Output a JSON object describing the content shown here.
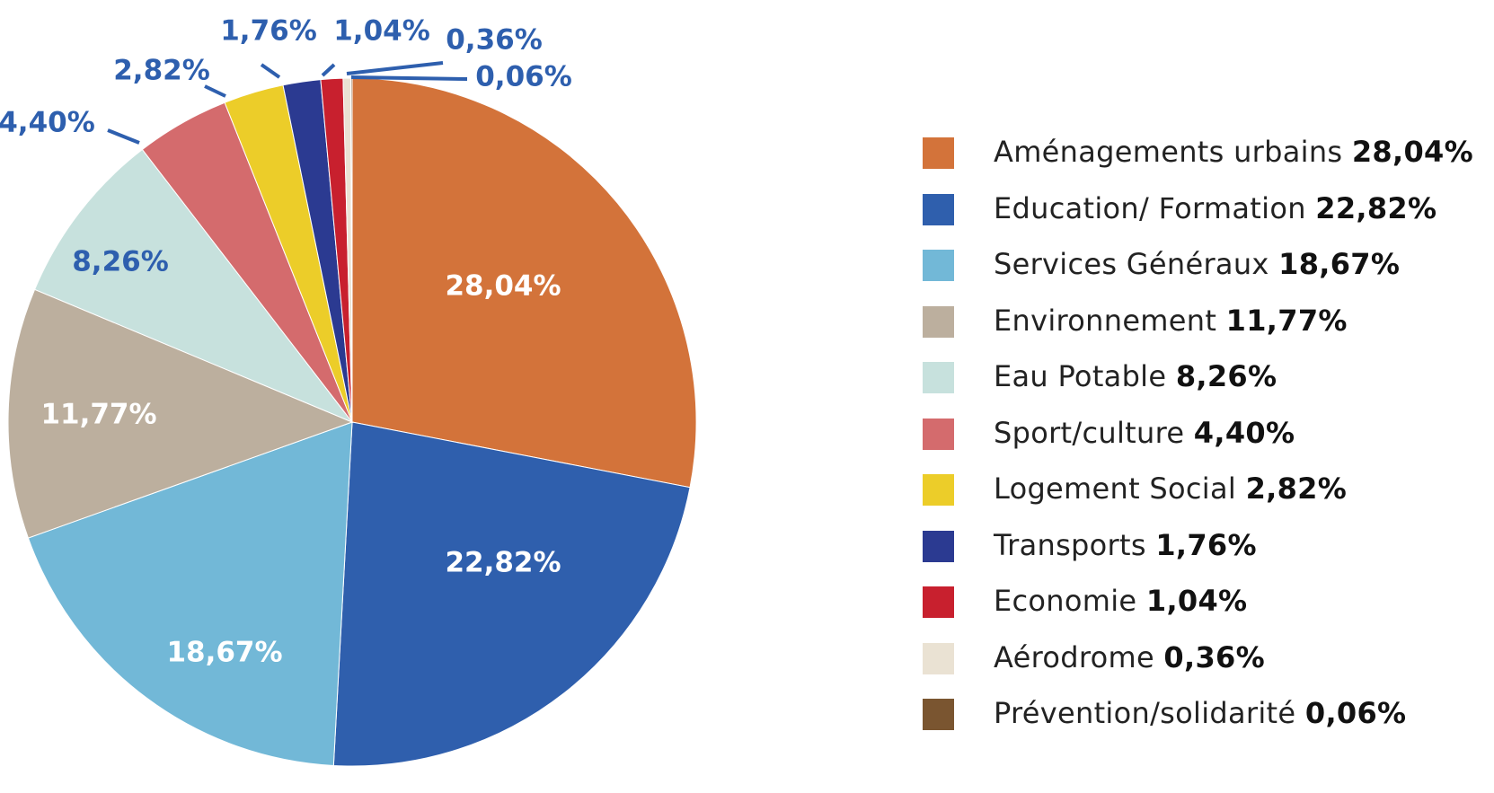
{
  "chart_data": {
    "type": "pie",
    "title": "",
    "slices": [
      {
        "label": "Aménagements urbains",
        "value": 28.04,
        "display": "28,04%",
        "color": "#D3733A",
        "label_color": "#ffffff"
      },
      {
        "label": "Education/ Formation",
        "value": 22.82,
        "display": "22,82%",
        "color": "#2F5FAD",
        "label_color": "#ffffff"
      },
      {
        "label": "Services Généraux",
        "value": 18.67,
        "display": "18,67%",
        "color": "#72B8D7",
        "label_color": "#ffffff"
      },
      {
        "label": "Environnement",
        "value": 11.77,
        "display": "11,77%",
        "color": "#BCAF9E",
        "label_color": "#ffffff"
      },
      {
        "label": "Eau Potable",
        "value": 8.26,
        "display": "8,26%",
        "color": "#C7E1DD",
        "label_color": "#2E5FAE"
      },
      {
        "label": "Sport/culture",
        "value": 4.4,
        "display": "4,40%",
        "color": "#D46B6D",
        "label_color": "#2E5FAE"
      },
      {
        "label": "Logement Social",
        "value": 2.82,
        "display": "2,82%",
        "color": "#ECCD29",
        "label_color": "#2E5FAE"
      },
      {
        "label": "Transports",
        "value": 1.76,
        "display": "1,76%",
        "color": "#2B3A91",
        "label_color": "#2E5FAE"
      },
      {
        "label": "Economie",
        "value": 1.04,
        "display": "1,04%",
        "color": "#C8202E",
        "label_color": "#2E5FAE"
      },
      {
        "label": "Aérodrome",
        "value": 0.36,
        "display": "0,36%",
        "color": "#EAE2D3",
        "label_color": "#2E5FAE"
      },
      {
        "label": "Prévention/solidarité",
        "value": 0.06,
        "display": "0,06%",
        "color": "#7A5530",
        "label_color": "#2E5FAE"
      }
    ],
    "legend_position": "right"
  }
}
